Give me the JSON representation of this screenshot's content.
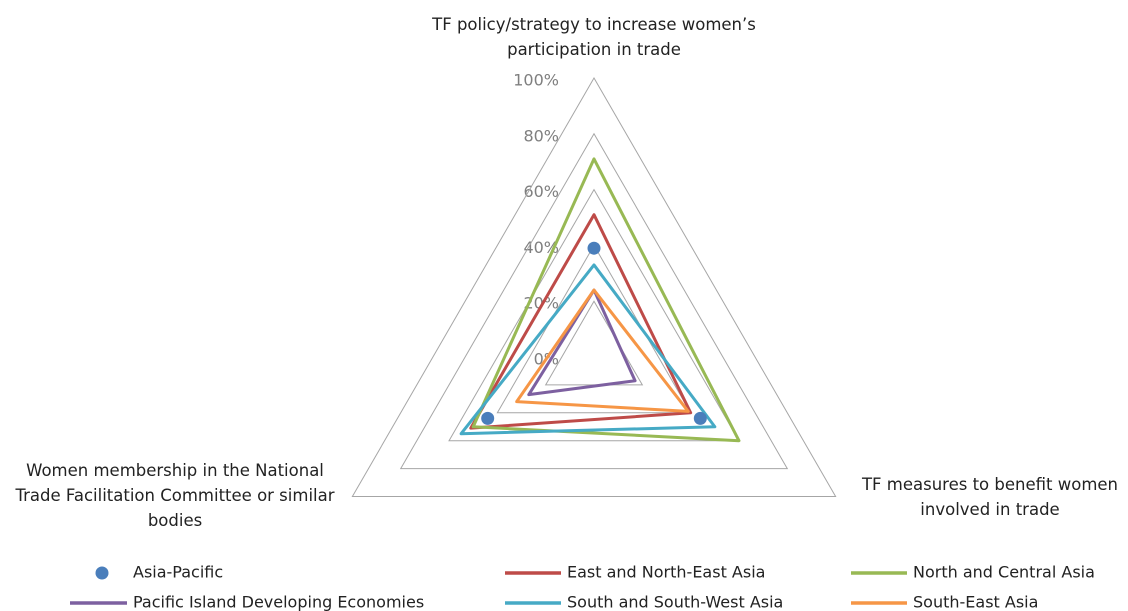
{
  "chart_data": {
    "type": "radar",
    "categories": [
      "TF policy/strategy to increase women’s participation in trade",
      "TF measures to benefit women involved in trade",
      "Women membership in the National Trade Facilitation Committee or similar bodies"
    ],
    "rlim": [
      0,
      100
    ],
    "rticks": [
      {
        "value": 0,
        "label": "0%"
      },
      {
        "value": 20,
        "label": "20%"
      },
      {
        "value": 40,
        "label": "40%"
      },
      {
        "value": 60,
        "label": "60%"
      },
      {
        "value": 80,
        "label": "80%"
      },
      {
        "value": 100,
        "label": "100%"
      }
    ],
    "grid": true,
    "legend": "bottom",
    "series": [
      {
        "name": "Asia-Pacific",
        "color": "#4a7ebb",
        "style": "markers",
        "values": [
          39,
          44,
          44
        ]
      },
      {
        "name": "East and North-East Asia",
        "color": "#be4b48",
        "style": "line",
        "values": [
          51,
          40,
          51
        ]
      },
      {
        "name": "North and Central Asia",
        "color": "#98b954",
        "style": "line",
        "values": [
          71,
          60,
          50
        ]
      },
      {
        "name": "Pacific Island Developing Economies",
        "color": "#7d60a0",
        "style": "line",
        "values": [
          24,
          17,
          27
        ]
      },
      {
        "name": "South and South-West Asia",
        "color": "#46aac5",
        "style": "line",
        "values": [
          33,
          50,
          55
        ]
      },
      {
        "name": "South-East Asia",
        "color": "#f69646",
        "style": "line",
        "values": [
          24,
          39,
          32
        ]
      }
    ]
  }
}
